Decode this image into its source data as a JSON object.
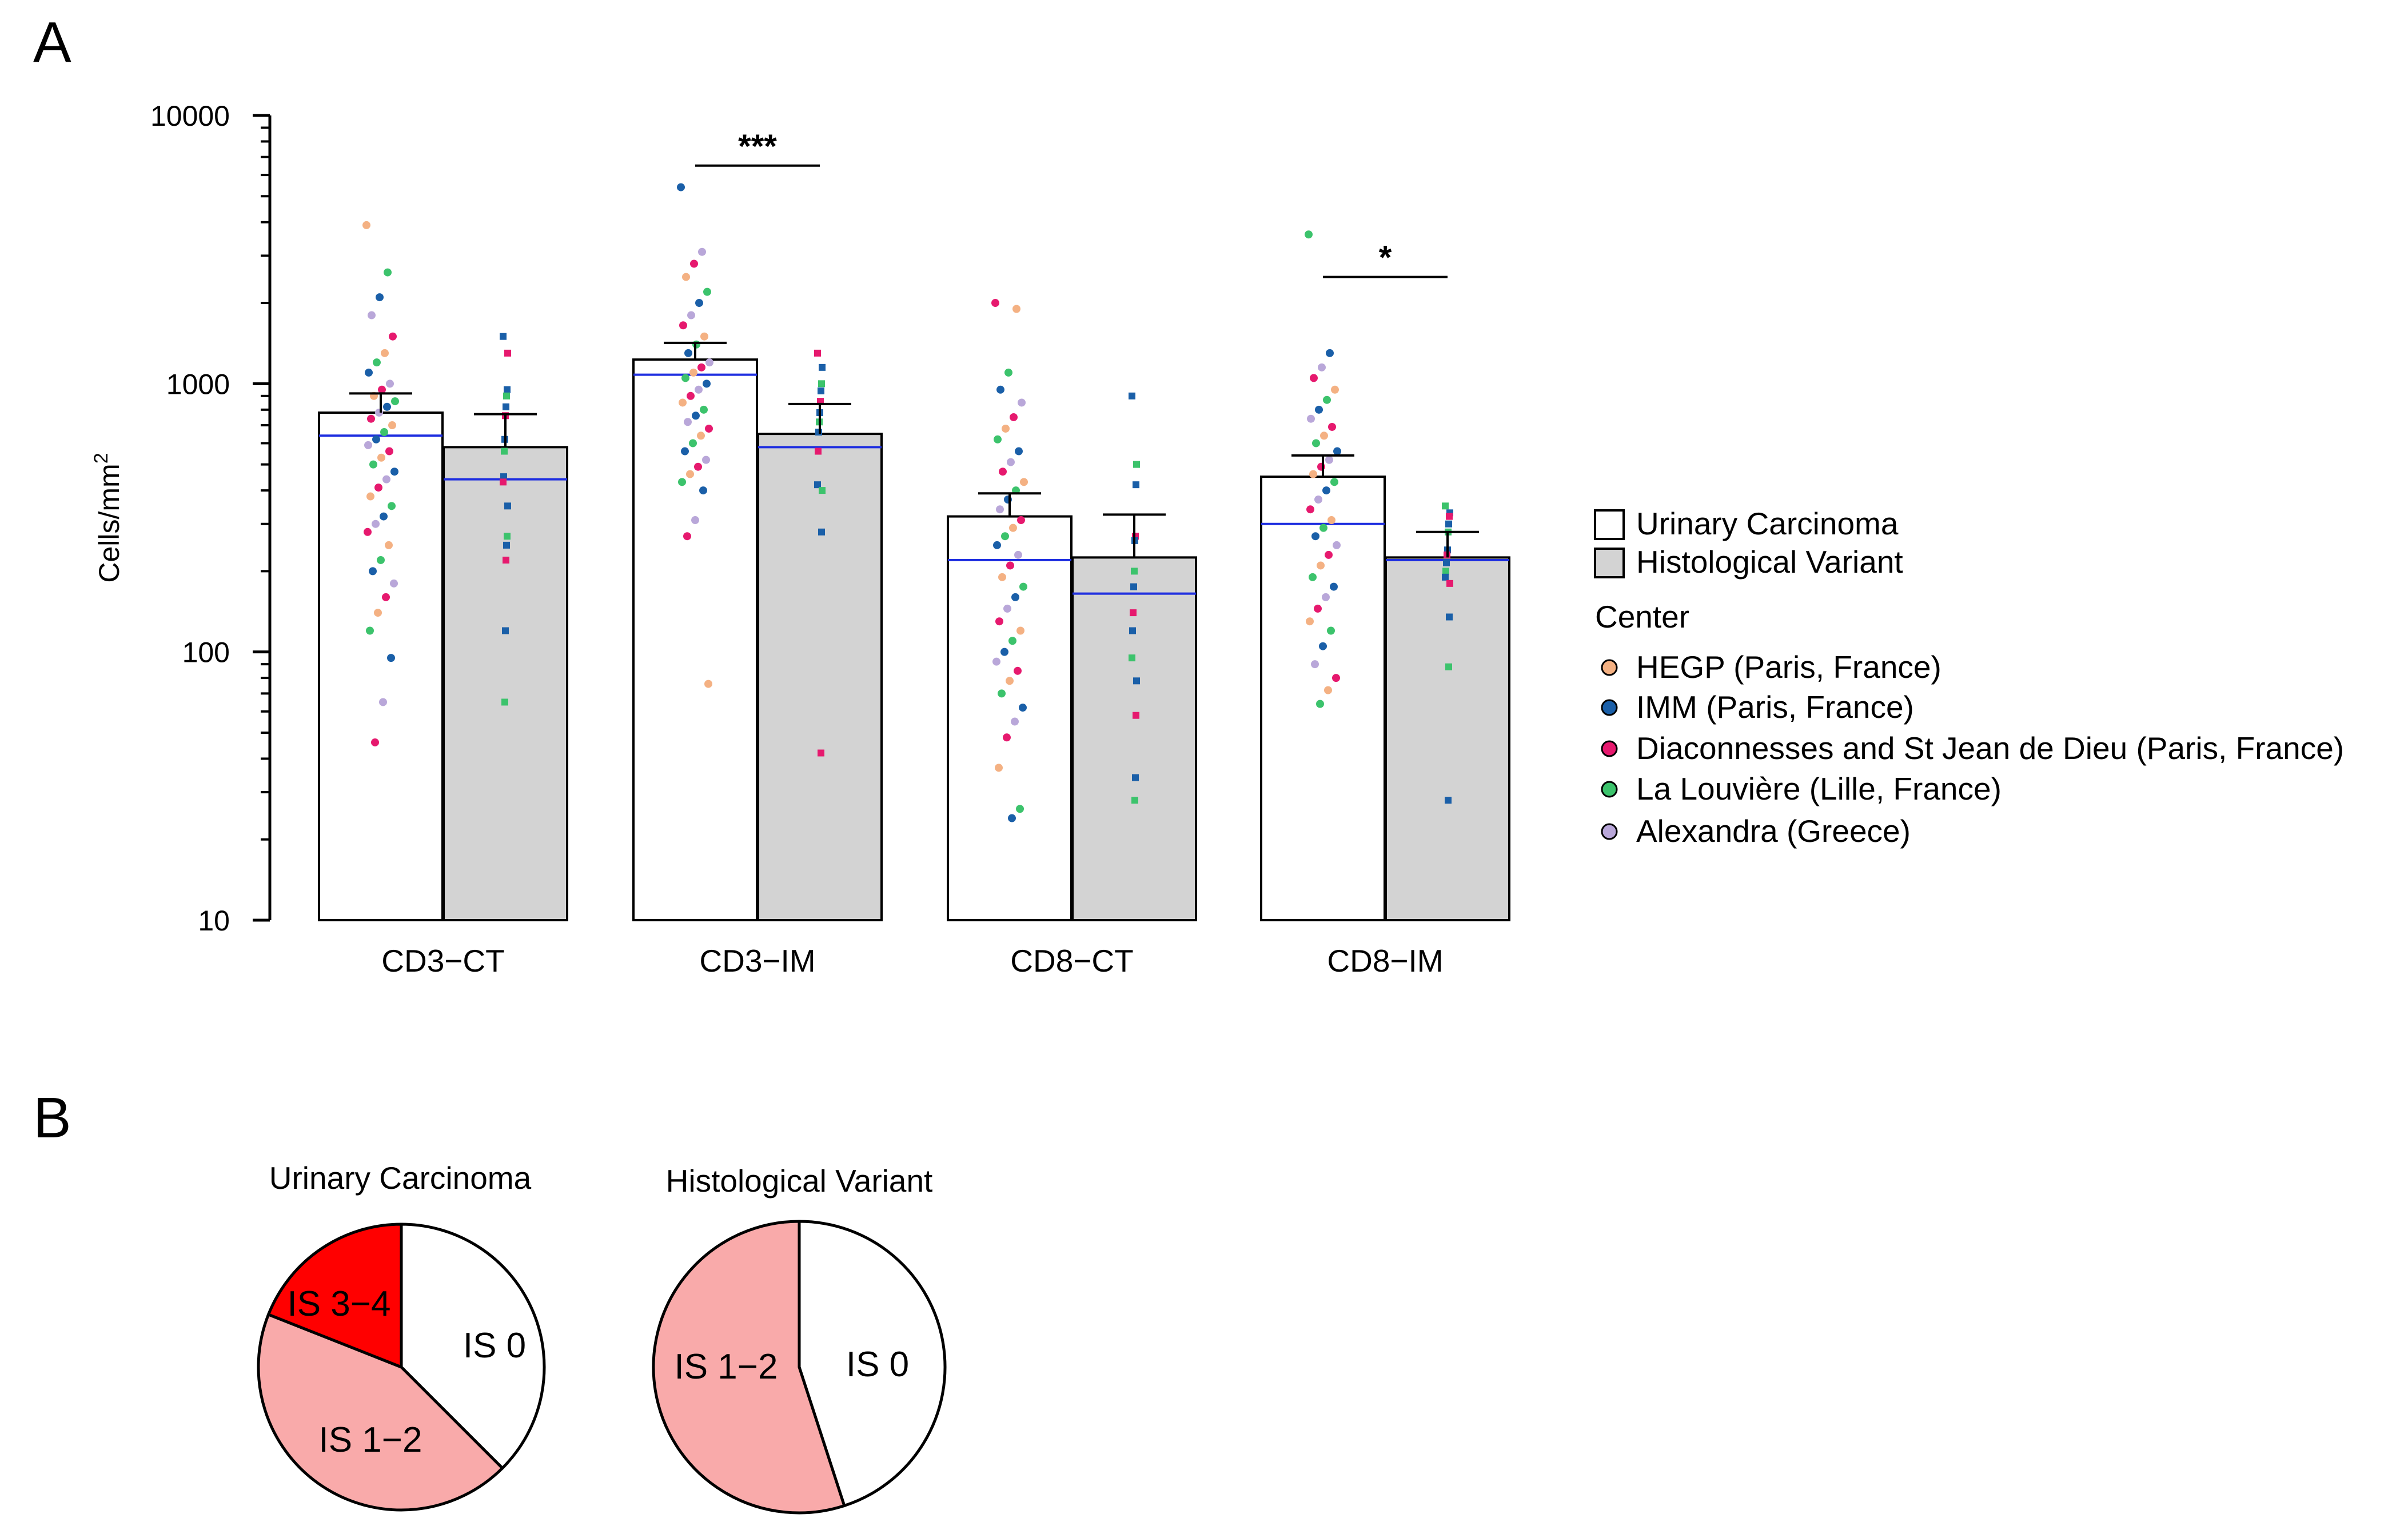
{
  "panels": {
    "a": "A",
    "b": "B"
  },
  "colors": {
    "uc_fill": "#ffffff",
    "hv_fill": "#d3d3d3",
    "median_line": "#1f2fe0",
    "pie_is0": "#ffffff",
    "pie_is12": "#f9aaaa",
    "pie_is34": "#ff0000"
  },
  "legend": {
    "groups": [
      {
        "label": "Urinary Carcinoma",
        "fill": "#ffffff"
      },
      {
        "label": "Histological Variant",
        "fill": "#d3d3d3"
      }
    ],
    "center_title": "Center",
    "centers": [
      {
        "label": "HEGP (Paris, France)",
        "color": "#f4b183"
      },
      {
        "label": "IMM (Paris, France)",
        "color": "#1a5fa8"
      },
      {
        "label": "Diaconnesses and St Jean de Dieu (Paris, France)",
        "color": "#e6196e"
      },
      {
        "label": "La Louvière (Lille, France)",
        "color": "#3cc36c"
      },
      {
        "label": "Alexandra (Greece)",
        "color": "#b9a7d9"
      }
    ]
  },
  "chart_data": [
    {
      "type": "bar",
      "title": "",
      "ylabel": "Cells/mm",
      "ylabel_sup": "2",
      "yscale": "log",
      "ylim": [
        10,
        10000
      ],
      "yticks": [
        {
          "value": 10,
          "label": "10"
        },
        {
          "value": 100,
          "label": "100"
        },
        {
          "value": 1000,
          "label": "1000"
        },
        {
          "value": 10000,
          "label": "10000"
        }
      ],
      "categories": [
        "CD3−CT",
        "CD3−IM",
        "CD8−CT",
        "CD8−IM"
      ],
      "series": [
        {
          "name": "Urinary Carcinoma",
          "values": [
            780,
            1230,
            320,
            450
          ],
          "error_upper": [
            920,
            1420,
            390,
            540
          ],
          "median": [
            640,
            1080,
            220,
            300
          ]
        },
        {
          "name": "Histological Variant",
          "values": [
            580,
            650,
            225,
            225
          ],
          "error_upper": [
            770,
            840,
            325,
            280
          ],
          "median": [
            440,
            580,
            165,
            220
          ]
        }
      ],
      "significance": [
        {
          "category": "CD3−IM",
          "label": "***",
          "y": 6500
        },
        {
          "category": "CD8−IM",
          "label": "*",
          "y": 2500
        }
      ],
      "points": {
        "note": "approximate individual values (cells/mm2) per category and group",
        "uc": [
          [
            3900,
            2600,
            2100,
            1800,
            1500,
            1300,
            1200,
            1100,
            1000,
            950,
            900,
            860,
            820,
            780,
            740,
            700,
            660,
            620,
            590,
            560,
            530,
            500,
            470,
            440,
            410,
            380,
            350,
            320,
            300,
            280,
            250,
            220,
            200,
            180,
            160,
            140,
            120,
            95,
            65,
            46
          ],
          [
            5400,
            3100,
            2800,
            2500,
            2200,
            2000,
            1800,
            1650,
            1500,
            1400,
            1300,
            1200,
            1150,
            1100,
            1050,
            1000,
            950,
            900,
            850,
            800,
            760,
            720,
            680,
            640,
            600,
            560,
            520,
            490,
            460,
            430,
            400,
            310,
            270,
            76
          ],
          [
            2000,
            1900,
            1100,
            950,
            850,
            750,
            680,
            620,
            560,
            510,
            470,
            430,
            400,
            370,
            340,
            310,
            290,
            270,
            250,
            230,
            210,
            190,
            175,
            160,
            145,
            130,
            120,
            110,
            100,
            92,
            85,
            78,
            70,
            62,
            55,
            48,
            37,
            26,
            24
          ],
          [
            3600,
            1300,
            1150,
            1050,
            950,
            870,
            800,
            740,
            690,
            640,
            600,
            560,
            520,
            490,
            460,
            430,
            400,
            370,
            340,
            310,
            290,
            270,
            250,
            230,
            210,
            190,
            175,
            160,
            145,
            130,
            120,
            105,
            90,
            80,
            72,
            64
          ]
        ],
        "hv": [
          [
            1500,
            1300,
            950,
            900,
            820,
            760,
            620,
            560,
            450,
            430,
            350,
            270,
            250,
            220,
            120,
            65
          ],
          [
            1300,
            1150,
            1000,
            940,
            860,
            780,
            720,
            660,
            560,
            420,
            400,
            280,
            42
          ],
          [
            900,
            500,
            420,
            270,
            260,
            200,
            175,
            140,
            120,
            95,
            78,
            58,
            34,
            28
          ],
          [
            350,
            330,
            320,
            300,
            280,
            240,
            230,
            215,
            200,
            190,
            180,
            135,
            88,
            28
          ]
        ]
      }
    },
    {
      "type": "pie",
      "title": "Urinary Carcinoma",
      "labels": [
        "IS 0",
        "IS 1−2",
        "IS 3−4"
      ],
      "values": [
        37.5,
        43.5,
        19
      ],
      "colors": [
        "#ffffff",
        "#f9aaaa",
        "#ff0000"
      ]
    },
    {
      "type": "pie",
      "title": "Histological Variant",
      "labels": [
        "IS 0",
        "IS 1−2"
      ],
      "values": [
        45,
        55
      ],
      "colors": [
        "#ffffff",
        "#f9aaaa"
      ]
    }
  ]
}
